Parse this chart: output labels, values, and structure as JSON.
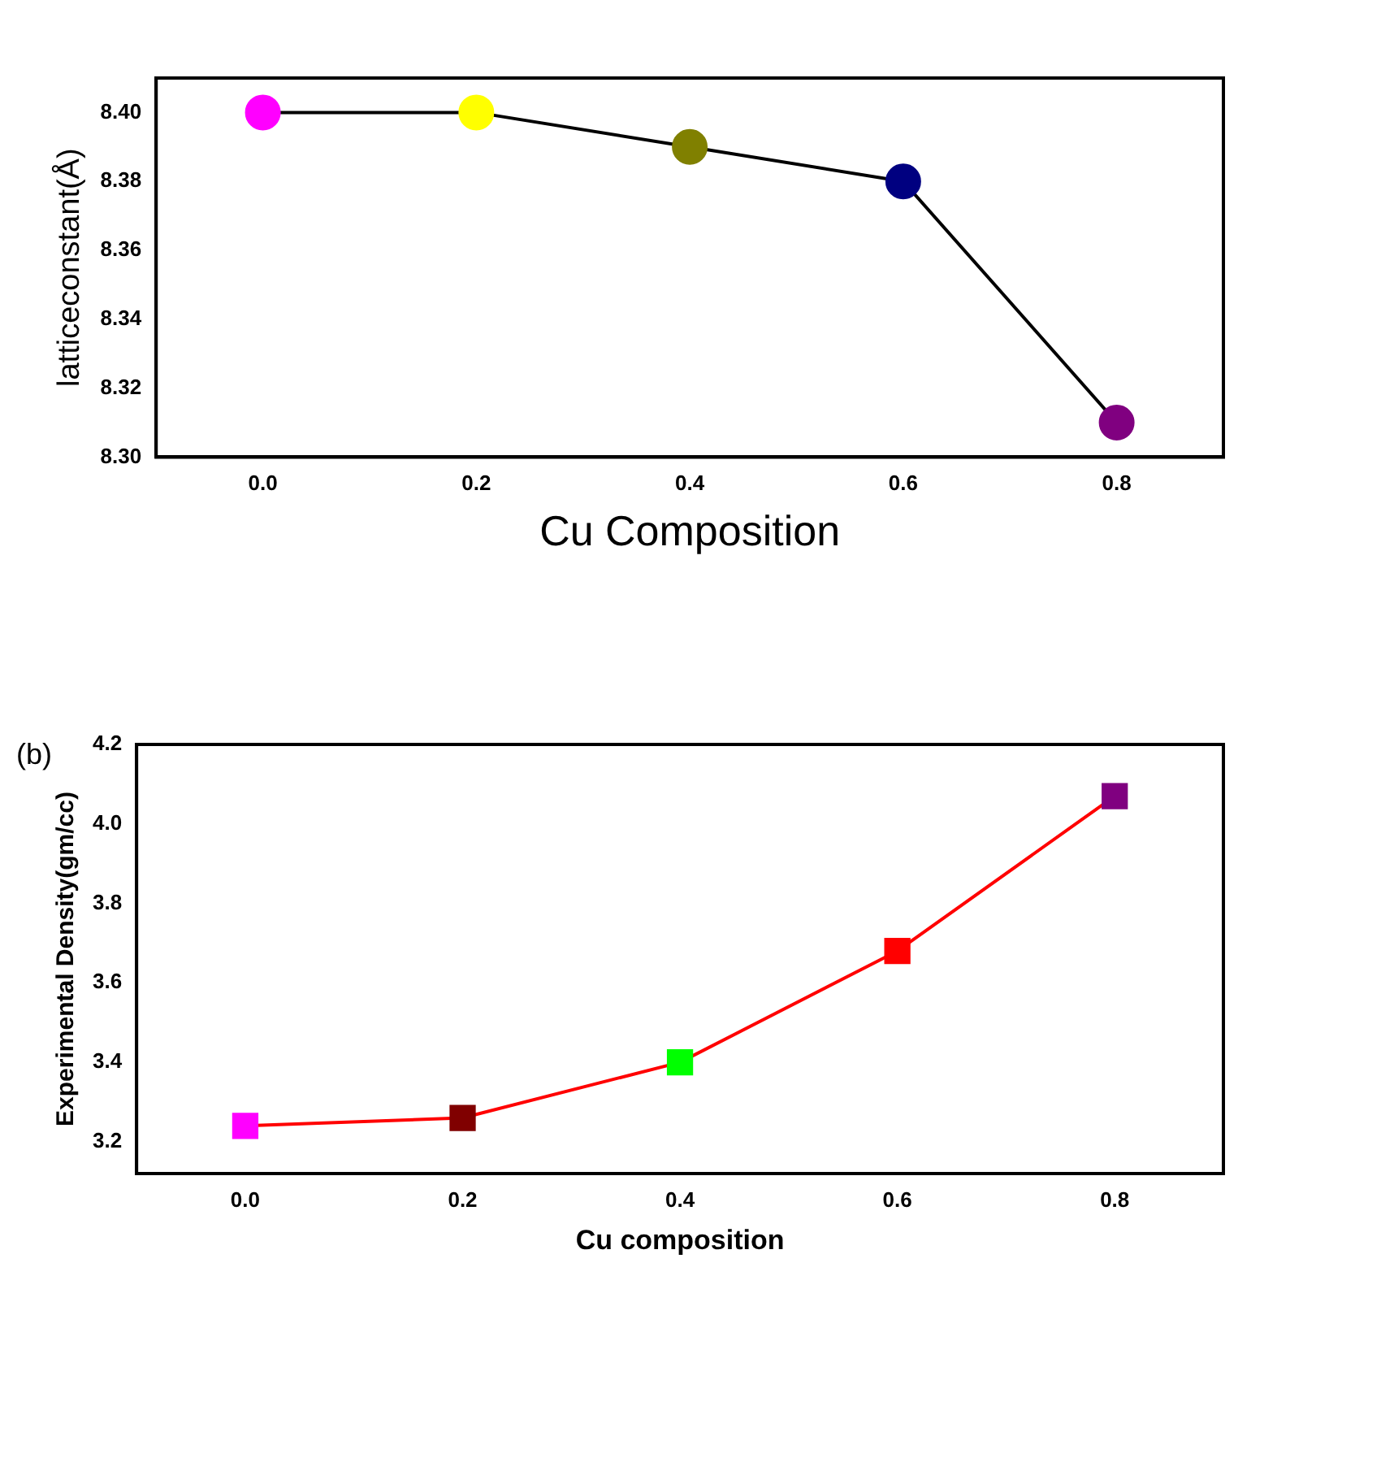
{
  "chart_data": [
    {
      "type": "line",
      "xlabel": "Cu Composition",
      "ylabel": "latticeconstant(Å)",
      "x": [
        0.0,
        0.2,
        0.4,
        0.6,
        0.8
      ],
      "series": [
        {
          "color": "#000000",
          "colors": [
            "#ff00ff",
            "#ffff00",
            "#808000",
            "#000080",
            "#800080"
          ],
          "values": [
            8.4,
            8.4,
            8.39,
            8.38,
            8.31
          ]
        }
      ],
      "xlim": [
        -0.1,
        0.9
      ],
      "xticks": [
        {
          "value": 0,
          "label": "0.0"
        },
        0.2,
        0.4,
        0.6,
        0.8
      ],
      "ylim": [
        8.3,
        8.41
      ],
      "yticks": [
        {
          "value": 8.3,
          "label": "8.30"
        },
        {
          "value": 8.32,
          "label": "8.32"
        },
        {
          "value": 8.34,
          "label": "8.34"
        },
        {
          "value": 8.36,
          "label": "8.36"
        },
        {
          "value": 8.38,
          "label": "8.38"
        },
        {
          "value": 8.4,
          "label": "8.40"
        }
      ],
      "grid": false,
      "legend": false,
      "marker": "circle",
      "line_style": "solid"
    },
    {
      "type": "line",
      "xlabel": "Cu composition",
      "ylabel": "Experimental Density(gm/cc)",
      "annotations": [
        "(b)"
      ],
      "x": [
        0.0,
        0.2,
        0.4,
        0.6,
        0.8
      ],
      "series": [
        {
          "color": "#ff0000",
          "colors": [
            "#ff00ff",
            "#800000",
            "#00ff00",
            "#ff0000",
            "#800080"
          ],
          "values": [
            3.24,
            3.26,
            3.4,
            3.68,
            4.07
          ]
        }
      ],
      "xlim": [
        -0.1,
        0.9
      ],
      "xticks": [
        {
          "value": 0,
          "label": "0.0"
        },
        0.2,
        0.4,
        0.6,
        0.8
      ],
      "ylim": [
        3.12,
        4.2
      ],
      "yticks": [
        3.2,
        3.4,
        3.6,
        3.8,
        {
          "value": 4,
          "label": "4.0"
        },
        4.2
      ],
      "grid": false,
      "legend": false,
      "marker": "square",
      "line_style": "solid"
    }
  ]
}
